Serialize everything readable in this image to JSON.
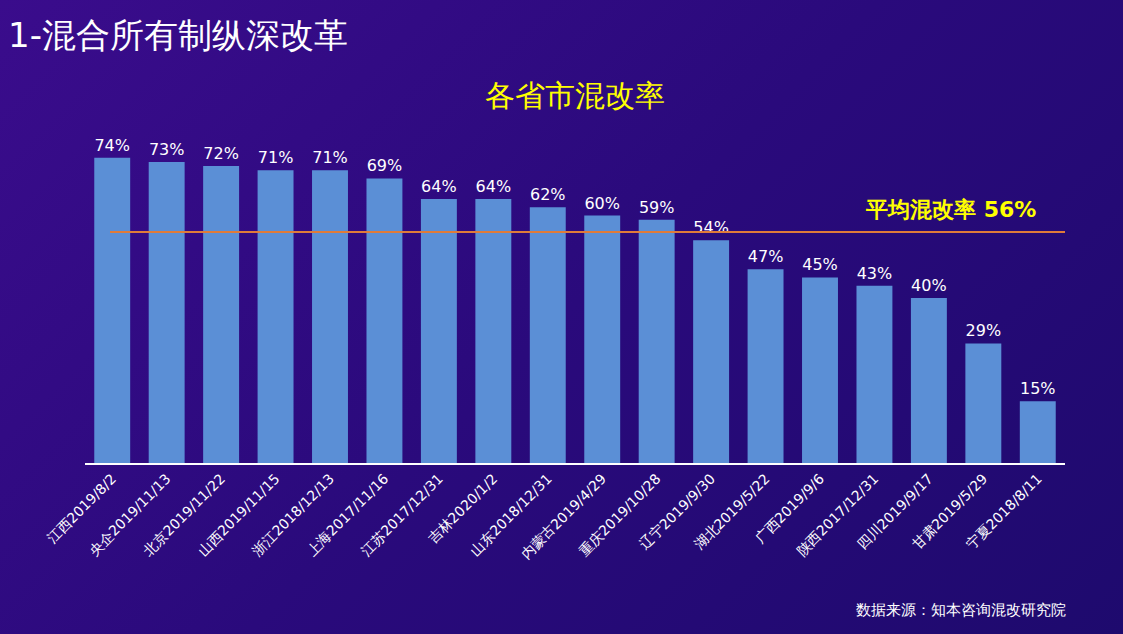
{
  "chart_data": {
    "type": "bar",
    "heading": "1-混合所有制纵深改革",
    "title": "各省市混改率",
    "categories": [
      "江西2019/8/2",
      "央企2019/11/13",
      "北京2019/11/22",
      "山西2019/11/15",
      "浙江2018/12/13",
      "上海2017/11/16",
      "江苏2017/12/31",
      "吉林2020/1/2",
      "山东2018/12/31",
      "内蒙古2019/4/29",
      "重庆2019/10/28",
      "辽宁2019/9/30",
      "湖北2019/5/22",
      "广西2019/9/6",
      "陕西2017/12/31",
      "四川2019/9/17",
      "甘肃2019/5/29",
      "宁夏2018/8/11"
    ],
    "values": [
      74,
      73,
      72,
      71,
      71,
      69,
      64,
      64,
      62,
      60,
      59,
      54,
      47,
      45,
      43,
      40,
      29,
      15
    ],
    "value_labels": [
      "74%",
      "73%",
      "72%",
      "71%",
      "71%",
      "69%",
      "64%",
      "64%",
      "62%",
      "60%",
      "59%",
      "54%",
      "47%",
      "45%",
      "43%",
      "40%",
      "29%",
      "15%"
    ],
    "color": "#5b8fd6",
    "ylim": [
      0,
      80
    ],
    "data_labels": true,
    "tick_labels": "x",
    "grid": false,
    "reference_line": {
      "value": 56,
      "label": "平均混改率 56%",
      "color": "#e07b39"
    },
    "source": "数据来源：知本咨询混改研究院"
  }
}
